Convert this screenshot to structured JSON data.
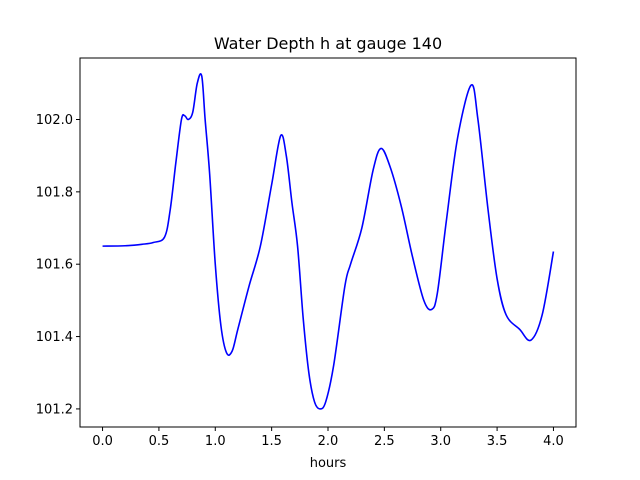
{
  "chart_data": {
    "type": "line",
    "title": "Water Depth h at gauge 140",
    "xlabel": "hours",
    "ylabel": "",
    "xlim": [
      -0.2,
      4.2
    ],
    "ylim": [
      101.15,
      102.17
    ],
    "xticks": [
      0.0,
      0.5,
      1.0,
      1.5,
      2.0,
      2.5,
      3.0,
      3.5,
      4.0
    ],
    "xtick_labels": [
      "0.0",
      "0.5",
      "1.0",
      "1.5",
      "2.0",
      "2.5",
      "3.0",
      "3.5",
      "4.0"
    ],
    "yticks": [
      101.2,
      101.4,
      101.6,
      101.8,
      102.0
    ],
    "ytick_labels": [
      "101.2",
      "101.4",
      "101.6",
      "101.8",
      "102.0"
    ],
    "grid": false,
    "series": [
      {
        "color": "#0000ff",
        "x": [
          0.0,
          0.2,
          0.35,
          0.45,
          0.55,
          0.6,
          0.65,
          0.7,
          0.73,
          0.76,
          0.8,
          0.84,
          0.88,
          0.91,
          0.95,
          1.0,
          1.05,
          1.1,
          1.15,
          1.2,
          1.3,
          1.4,
          1.5,
          1.58,
          1.63,
          1.68,
          1.73,
          1.78,
          1.83,
          1.88,
          1.93,
          1.98,
          2.05,
          2.15,
          2.2,
          2.3,
          2.4,
          2.47,
          2.55,
          2.65,
          2.75,
          2.85,
          2.92,
          2.97,
          3.05,
          3.15,
          3.27,
          3.33,
          3.42,
          3.5,
          3.58,
          3.7,
          3.8,
          3.9,
          4.0
        ],
        "y": [
          101.65,
          101.651,
          101.655,
          101.66,
          101.675,
          101.75,
          101.88,
          102.0,
          102.01,
          102.0,
          102.02,
          102.1,
          102.12,
          102.0,
          101.85,
          101.6,
          101.43,
          101.355,
          101.36,
          101.42,
          101.54,
          101.65,
          101.82,
          101.955,
          101.9,
          101.77,
          101.65,
          101.45,
          101.3,
          101.22,
          101.2,
          101.22,
          101.32,
          101.54,
          101.6,
          101.7,
          101.86,
          101.92,
          101.87,
          101.76,
          101.62,
          101.5,
          101.475,
          101.52,
          101.72,
          101.95,
          102.095,
          102.0,
          101.75,
          101.56,
          101.46,
          101.42,
          101.39,
          101.46,
          101.635
        ]
      }
    ]
  }
}
